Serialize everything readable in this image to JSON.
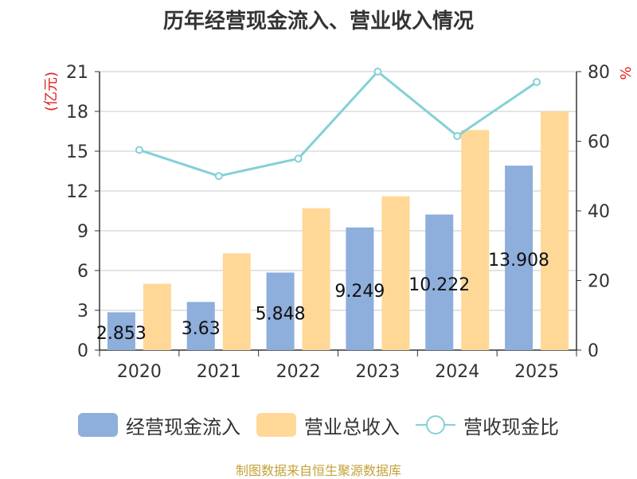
{
  "title": "历年经营现金流入、营业收入情况",
  "source": "制图数据来自恒生聚源数据库",
  "left_axis_unit": "(亿元)",
  "right_axis_unit": "%",
  "colors": {
    "cash": "#8eaedb",
    "revenue": "#ffd898",
    "ratio": "#82d1d6",
    "unit": "#e02020"
  },
  "chart_data": {
    "type": "bar",
    "title": "历年经营现金流入、营业收入情况",
    "categories": [
      "2020",
      "2021",
      "2022",
      "2023",
      "2024",
      "2025"
    ],
    "series": [
      {
        "name": "经营现金流入",
        "axis": "left",
        "values": [
          2.853,
          3.63,
          5.848,
          9.249,
          10.222,
          13.908
        ],
        "labels": [
          "2.853",
          "3.63",
          "5.848",
          "9.249",
          "10.222",
          "13.908"
        ]
      },
      {
        "name": "营业总收入",
        "axis": "left",
        "values": [
          5.0,
          7.3,
          10.7,
          11.6,
          16.6,
          18.0
        ]
      },
      {
        "name": "营收现金比",
        "axis": "right",
        "type": "line",
        "values": [
          57.5,
          50.0,
          55.0,
          80.0,
          61.5,
          77.0
        ]
      }
    ],
    "ylabel": "(亿元)",
    "ylim": [
      0,
      21
    ],
    "yticks": [
      0,
      3,
      6,
      9,
      12,
      15,
      18,
      21
    ],
    "y2label": "%",
    "y2lim": [
      0,
      80
    ],
    "y2ticks": [
      0,
      20,
      40,
      60,
      80
    ],
    "grid": true,
    "legend": "bottom"
  }
}
